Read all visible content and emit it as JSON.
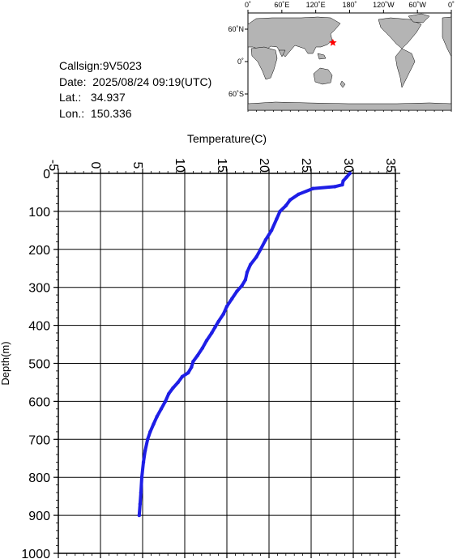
{
  "info": {
    "callsign": "Callsign:9V5023",
    "date": "Date:  2025/08/24 09:19(UTC)",
    "lat": "Lat.:   34.937",
    "lon": "Lon.:  150.336"
  },
  "map": {
    "top_ticks": [
      "0˚",
      "60˚E",
      "120˚E",
      "180˚",
      "120˚W",
      "60˚W",
      "0˚"
    ],
    "left_ticks": [
      "60˚N",
      "0˚",
      "60˚S"
    ],
    "marker": {
      "lon": 150.336,
      "lat": 34.937,
      "color": "#ff0000"
    },
    "ocean_color": "#ffffff",
    "land_color": "#b4b4b4"
  },
  "chart_data": {
    "type": "line",
    "xlabel": "Temperature(C)",
    "ylabel": "Depth(m)",
    "xlim": [
      -5,
      35
    ],
    "ylim": [
      1000,
      0
    ],
    "x_ticks": [
      -5,
      0,
      5,
      10,
      15,
      20,
      25,
      30,
      35
    ],
    "y_ticks": [
      0,
      100,
      200,
      300,
      400,
      500,
      600,
      700,
      800,
      900,
      1000
    ],
    "grid": true,
    "line_color": "#1e1ee6",
    "series": [
      {
        "points": [
          [
            29.6,
            0
          ],
          [
            29.2,
            10
          ],
          [
            28.8,
            20
          ],
          [
            28.7,
            30
          ],
          [
            27.8,
            35
          ],
          [
            25.2,
            40
          ],
          [
            23.5,
            55
          ],
          [
            22.5,
            70
          ],
          [
            22.0,
            85
          ],
          [
            21.3,
            100
          ],
          [
            20.9,
            120
          ],
          [
            20.3,
            150
          ],
          [
            19.6,
            175
          ],
          [
            19.0,
            200
          ],
          [
            18.5,
            220
          ],
          [
            17.8,
            240
          ],
          [
            17.4,
            260
          ],
          [
            17.2,
            280
          ],
          [
            16.8,
            295
          ],
          [
            16.2,
            310
          ],
          [
            15.6,
            330
          ],
          [
            15.0,
            350
          ],
          [
            14.6,
            370
          ],
          [
            14.0,
            390
          ],
          [
            13.6,
            405
          ],
          [
            13.2,
            420
          ],
          [
            12.6,
            440
          ],
          [
            12.1,
            460
          ],
          [
            11.5,
            480
          ],
          [
            11.0,
            495
          ],
          [
            10.8,
            510
          ],
          [
            10.4,
            525
          ],
          [
            9.7,
            535
          ],
          [
            9.2,
            550
          ],
          [
            8.6,
            565
          ],
          [
            8.1,
            580
          ],
          [
            7.7,
            600
          ],
          [
            7.2,
            620
          ],
          [
            6.7,
            640
          ],
          [
            6.3,
            660
          ],
          [
            5.9,
            680
          ],
          [
            5.6,
            700
          ],
          [
            5.3,
            730
          ],
          [
            5.1,
            760
          ],
          [
            4.9,
            800
          ],
          [
            4.8,
            840
          ],
          [
            4.7,
            870
          ],
          [
            4.6,
            900
          ]
        ]
      }
    ]
  }
}
